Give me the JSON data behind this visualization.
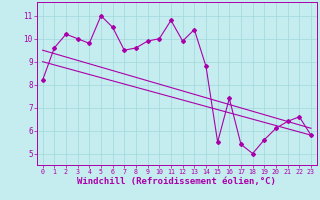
{
  "background_color": "#c5ecee",
  "line_color": "#aa00aa",
  "grid_color": "#a0d8dc",
  "xlabel": "Windchill (Refroidissement éolien,°C)",
  "xlabel_fontsize": 6.5,
  "ylabel_values": [
    5,
    6,
    7,
    8,
    9,
    10,
    11
  ],
  "xlim": [
    -0.5,
    23.5
  ],
  "ylim": [
    4.5,
    11.6
  ],
  "x_ticks": [
    0,
    1,
    2,
    3,
    4,
    5,
    6,
    7,
    8,
    9,
    10,
    11,
    12,
    13,
    14,
    15,
    16,
    17,
    18,
    19,
    20,
    21,
    22,
    23
  ],
  "data_line": [
    8.2,
    9.6,
    10.2,
    10.0,
    9.8,
    11.0,
    10.5,
    9.5,
    9.6,
    9.9,
    10.0,
    10.8,
    9.9,
    10.4,
    8.8,
    5.5,
    7.4,
    5.4,
    5.0,
    5.6,
    6.1,
    6.4,
    6.6,
    5.8
  ],
  "trend1_x": [
    0,
    23
  ],
  "trend1_y": [
    9.5,
    6.1
  ],
  "trend2_x": [
    0,
    23
  ],
  "trend2_y": [
    9.0,
    5.8
  ]
}
